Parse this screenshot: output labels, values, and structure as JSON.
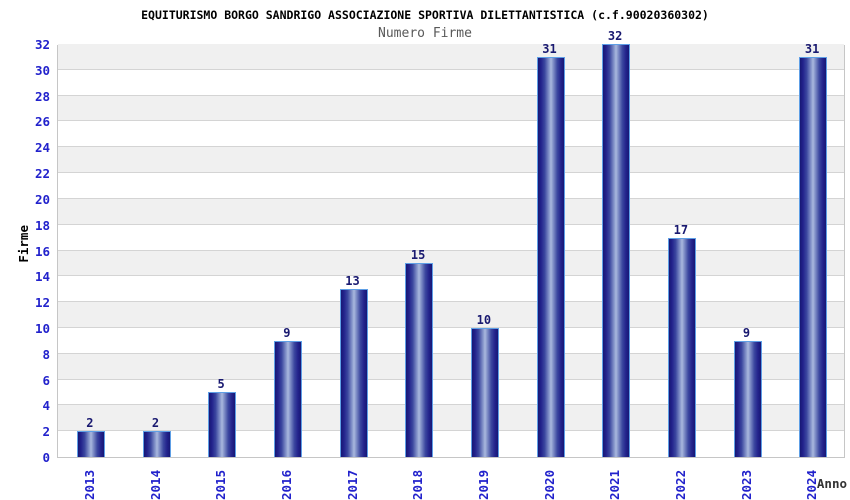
{
  "header": {
    "title": "EQUITURISMO BORGO SANDRIGO ASSOCIAZIONE SPORTIVA DILETTANTISTICA (c.f.90020360302)",
    "subtitle": "Numero Firme"
  },
  "axes": {
    "y_title": "Firme",
    "x_title": "Anno"
  },
  "chart_data": {
    "type": "bar",
    "title": "EQUITURISMO BORGO SANDRIGO ASSOCIAZIONE SPORTIVA DILETTANTISTICA (c.f.90020360302)",
    "subtitle": "Numero Firme",
    "xlabel": "Anno",
    "ylabel": "Firme",
    "categories": [
      "2013",
      "2014",
      "2015",
      "2016",
      "2017",
      "2018",
      "2019",
      "2020",
      "2021",
      "2022",
      "2023",
      "2024"
    ],
    "values": [
      2,
      2,
      5,
      9,
      13,
      15,
      10,
      31,
      32,
      17,
      9,
      31
    ],
    "ylim": [
      0,
      32
    ],
    "ytick_step": 2,
    "yticks": [
      0,
      2,
      4,
      6,
      8,
      10,
      12,
      14,
      16,
      18,
      20,
      22,
      24,
      26,
      28,
      30,
      32
    ],
    "grid": "horizontal-bands",
    "legend_position": "none",
    "bar_value_labels": true
  },
  "colors": {
    "tick_label": "#2222cc",
    "value_label": "#191970",
    "bar_edge_dark": "#171775",
    "bar_mid": "#3c48a0",
    "bar_highlight": "#aab8de",
    "bar_border": "#5e9fe6",
    "band_alt": "#f0f0f0",
    "band_base": "#ffffff",
    "gridline": "#d4d4d4",
    "title_color": "#000000",
    "subtitle_color": "#595959"
  }
}
